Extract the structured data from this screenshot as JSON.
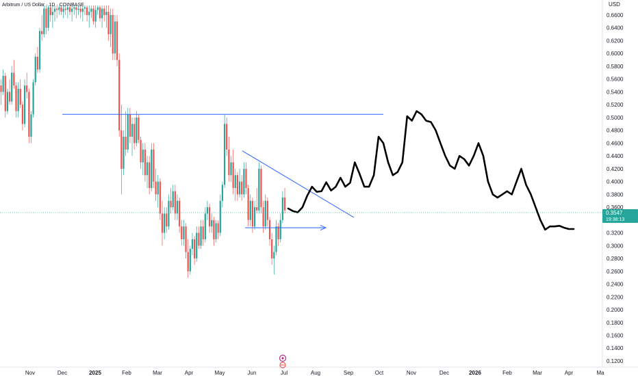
{
  "chart_data": {
    "type": "candlestick",
    "title": "Arbitrum / US Dollar · 1D · COINBASE",
    "currency_label": "USD",
    "y_ticks": [
      "0.6600",
      "0.6400",
      "0.6200",
      "0.6000",
      "0.5800",
      "0.5600",
      "0.5400",
      "0.5200",
      "0.5000",
      "0.4800",
      "0.4600",
      "0.4400",
      "0.4200",
      "0.4000",
      "0.3800",
      "0.3600",
      "0.3400",
      "0.3200",
      "0.3000",
      "0.2800",
      "0.2600",
      "0.2400",
      "0.2200",
      "0.2000",
      "0.1800",
      "0.1600",
      "0.1400",
      "0.1200"
    ],
    "x_ticks": [
      {
        "label": "Nov",
        "bold": false
      },
      {
        "label": "Dec",
        "bold": false
      },
      {
        "label": "2025",
        "bold": true
      },
      {
        "label": "Feb",
        "bold": false
      },
      {
        "label": "Mar",
        "bold": false
      },
      {
        "label": "Apr",
        "bold": false
      },
      {
        "label": "May",
        "bold": false
      },
      {
        "label": "Jun",
        "bold": false
      },
      {
        "label": "Jul",
        "bold": false
      },
      {
        "label": "Aug",
        "bold": false
      },
      {
        "label": "Sep",
        "bold": false
      },
      {
        "label": "Oct",
        "bold": false
      },
      {
        "label": "Nov",
        "bold": false
      },
      {
        "label": "Dec",
        "bold": false
      },
      {
        "label": "2026",
        "bold": true
      },
      {
        "label": "Feb",
        "bold": false
      },
      {
        "label": "Mar",
        "bold": false
      },
      {
        "label": "Apr",
        "bold": false
      },
      {
        "label": "Ma",
        "bold": false
      }
    ],
    "ylim": [
      0.11,
      0.675
    ],
    "current_price": "0.3547",
    "countdown": "19:38:13",
    "grid": false,
    "colors": {
      "up": "#26a69a",
      "down": "#ef5350",
      "drawing": "#2962ff",
      "prediction": "#000000",
      "price_tag": "#26a69a"
    },
    "resistance_level": 0.505,
    "projection_path": [
      0.358,
      0.354,
      0.352,
      0.36,
      0.378,
      0.392,
      0.384,
      0.385,
      0.399,
      0.386,
      0.392,
      0.406,
      0.392,
      0.398,
      0.43,
      0.412,
      0.392,
      0.392,
      0.41,
      0.47,
      0.46,
      0.43,
      0.41,
      0.415,
      0.43,
      0.502,
      0.495,
      0.51,
      0.505,
      0.495,
      0.493,
      0.48,
      0.46,
      0.44,
      0.425,
      0.42,
      0.44,
      0.435,
      0.425,
      0.44,
      0.46,
      0.44,
      0.4,
      0.38,
      0.375,
      0.38,
      0.385,
      0.38,
      0.4,
      0.42,
      0.395,
      0.38,
      0.36,
      0.34,
      0.325,
      0.33,
      0.33,
      0.331,
      0.328,
      0.326,
      0.326
    ],
    "candles": [
      [
        0.55,
        0.56,
        0.52,
        0.54
      ],
      [
        0.54,
        0.575,
        0.535,
        0.565
      ],
      [
        0.565,
        0.57,
        0.5,
        0.51
      ],
      [
        0.51,
        0.545,
        0.505,
        0.54
      ],
      [
        0.54,
        0.56,
        0.52,
        0.525
      ],
      [
        0.525,
        0.58,
        0.52,
        0.57
      ],
      [
        0.57,
        0.59,
        0.545,
        0.55
      ],
      [
        0.55,
        0.555,
        0.5,
        0.51
      ],
      [
        0.51,
        0.555,
        0.5,
        0.545
      ],
      [
        0.545,
        0.56,
        0.515,
        0.52
      ],
      [
        0.52,
        0.525,
        0.48,
        0.49
      ],
      [
        0.49,
        0.56,
        0.485,
        0.55
      ],
      [
        0.55,
        0.57,
        0.53,
        0.54
      ],
      [
        0.54,
        0.545,
        0.46,
        0.47
      ],
      [
        0.47,
        0.51,
        0.46,
        0.505
      ],
      [
        0.505,
        0.56,
        0.5,
        0.555
      ],
      [
        0.555,
        0.6,
        0.55,
        0.595
      ],
      [
        0.595,
        0.61,
        0.57,
        0.575
      ],
      [
        0.575,
        0.64,
        0.57,
        0.635
      ],
      [
        0.635,
        0.66,
        0.62,
        0.63
      ],
      [
        0.63,
        0.675,
        0.625,
        0.67
      ],
      [
        0.67,
        0.675,
        0.63,
        0.64
      ],
      [
        0.64,
        0.675,
        0.635,
        0.672
      ],
      [
        0.672,
        0.675,
        0.65,
        0.66
      ],
      [
        0.66,
        0.675,
        0.64,
        0.665
      ],
      [
        0.665,
        0.675,
        0.65,
        0.67
      ],
      [
        0.67,
        0.675,
        0.655,
        0.668
      ],
      [
        0.668,
        0.675,
        0.66,
        0.672
      ],
      [
        0.672,
        0.675,
        0.66,
        0.665
      ],
      [
        0.665,
        0.675,
        0.655,
        0.67
      ],
      [
        0.67,
        0.675,
        0.66,
        0.668
      ],
      [
        0.668,
        0.675,
        0.655,
        0.672
      ],
      [
        0.672,
        0.675,
        0.66,
        0.665
      ],
      [
        0.665,
        0.675,
        0.65,
        0.67
      ],
      [
        0.67,
        0.675,
        0.66,
        0.672
      ],
      [
        0.672,
        0.675,
        0.655,
        0.668
      ],
      [
        0.668,
        0.675,
        0.66,
        0.67
      ],
      [
        0.67,
        0.675,
        0.655,
        0.665
      ],
      [
        0.665,
        0.675,
        0.65,
        0.67
      ],
      [
        0.67,
        0.675,
        0.66,
        0.672
      ],
      [
        0.672,
        0.675,
        0.65,
        0.66
      ],
      [
        0.66,
        0.675,
        0.64,
        0.665
      ],
      [
        0.665,
        0.675,
        0.655,
        0.67
      ],
      [
        0.67,
        0.675,
        0.645,
        0.65
      ],
      [
        0.65,
        0.675,
        0.64,
        0.668
      ],
      [
        0.668,
        0.675,
        0.66,
        0.672
      ],
      [
        0.672,
        0.675,
        0.65,
        0.655
      ],
      [
        0.655,
        0.675,
        0.64,
        0.67
      ],
      [
        0.67,
        0.675,
        0.65,
        0.66
      ],
      [
        0.66,
        0.675,
        0.64,
        0.665
      ],
      [
        0.665,
        0.675,
        0.62,
        0.63
      ],
      [
        0.63,
        0.67,
        0.61,
        0.66
      ],
      [
        0.66,
        0.67,
        0.59,
        0.6
      ],
      [
        0.6,
        0.66,
        0.59,
        0.65
      ],
      [
        0.65,
        0.66,
        0.58,
        0.59
      ],
      [
        0.59,
        0.6,
        0.47,
        0.48
      ],
      [
        0.48,
        0.52,
        0.38,
        0.42
      ],
      [
        0.42,
        0.48,
        0.41,
        0.47
      ],
      [
        0.47,
        0.51,
        0.44,
        0.45
      ],
      [
        0.45,
        0.515,
        0.445,
        0.505
      ],
      [
        0.505,
        0.515,
        0.46,
        0.47
      ],
      [
        0.47,
        0.5,
        0.44,
        0.49
      ],
      [
        0.49,
        0.5,
        0.45,
        0.46
      ],
      [
        0.46,
        0.51,
        0.455,
        0.5
      ],
      [
        0.5,
        0.505,
        0.46,
        0.465
      ],
      [
        0.465,
        0.47,
        0.42,
        0.43
      ],
      [
        0.43,
        0.46,
        0.41,
        0.45
      ],
      [
        0.45,
        0.46,
        0.4,
        0.41
      ],
      [
        0.41,
        0.44,
        0.39,
        0.43
      ],
      [
        0.43,
        0.44,
        0.38,
        0.39
      ],
      [
        0.39,
        0.46,
        0.385,
        0.45
      ],
      [
        0.45,
        0.46,
        0.39,
        0.4
      ],
      [
        0.4,
        0.42,
        0.37,
        0.38
      ],
      [
        0.38,
        0.41,
        0.36,
        0.4
      ],
      [
        0.4,
        0.405,
        0.34,
        0.35
      ],
      [
        0.35,
        0.37,
        0.3,
        0.32
      ],
      [
        0.32,
        0.36,
        0.31,
        0.35
      ],
      [
        0.35,
        0.36,
        0.32,
        0.33
      ],
      [
        0.33,
        0.38,
        0.325,
        0.37
      ],
      [
        0.37,
        0.39,
        0.35,
        0.36
      ],
      [
        0.36,
        0.395,
        0.355,
        0.385
      ],
      [
        0.385,
        0.395,
        0.34,
        0.35
      ],
      [
        0.35,
        0.38,
        0.34,
        0.37
      ],
      [
        0.37,
        0.375,
        0.32,
        0.33
      ],
      [
        0.33,
        0.34,
        0.3,
        0.31
      ],
      [
        0.31,
        0.34,
        0.3,
        0.33
      ],
      [
        0.33,
        0.335,
        0.28,
        0.29
      ],
      [
        0.29,
        0.31,
        0.25,
        0.26
      ],
      [
        0.26,
        0.3,
        0.255,
        0.295
      ],
      [
        0.295,
        0.32,
        0.285,
        0.31
      ],
      [
        0.31,
        0.315,
        0.27,
        0.28
      ],
      [
        0.28,
        0.33,
        0.275,
        0.32
      ],
      [
        0.32,
        0.33,
        0.295,
        0.3
      ],
      [
        0.3,
        0.34,
        0.295,
        0.33
      ],
      [
        0.33,
        0.34,
        0.3,
        0.31
      ],
      [
        0.31,
        0.36,
        0.305,
        0.35
      ],
      [
        0.35,
        0.37,
        0.34,
        0.36
      ],
      [
        0.36,
        0.365,
        0.32,
        0.33
      ],
      [
        0.33,
        0.35,
        0.32,
        0.34
      ],
      [
        0.34,
        0.345,
        0.3,
        0.31
      ],
      [
        0.31,
        0.34,
        0.305,
        0.335
      ],
      [
        0.335,
        0.34,
        0.31,
        0.32
      ],
      [
        0.32,
        0.38,
        0.315,
        0.37
      ],
      [
        0.37,
        0.4,
        0.36,
        0.395
      ],
      [
        0.395,
        0.505,
        0.39,
        0.49
      ],
      [
        0.49,
        0.5,
        0.44,
        0.45
      ],
      [
        0.45,
        0.47,
        0.4,
        0.41
      ],
      [
        0.41,
        0.44,
        0.4,
        0.43
      ],
      [
        0.43,
        0.45,
        0.38,
        0.39
      ],
      [
        0.39,
        0.42,
        0.37,
        0.41
      ],
      [
        0.41,
        0.415,
        0.37,
        0.38
      ],
      [
        0.38,
        0.42,
        0.375,
        0.4
      ],
      [
        0.4,
        0.41,
        0.37,
        0.38
      ],
      [
        0.38,
        0.43,
        0.375,
        0.42
      ],
      [
        0.42,
        0.43,
        0.38,
        0.39
      ],
      [
        0.39,
        0.395,
        0.33,
        0.34
      ],
      [
        0.34,
        0.38,
        0.33,
        0.37
      ],
      [
        0.37,
        0.375,
        0.32,
        0.33
      ],
      [
        0.33,
        0.37,
        0.325,
        0.36
      ],
      [
        0.36,
        0.39,
        0.35,
        0.355
      ],
      [
        0.355,
        0.43,
        0.35,
        0.42
      ],
      [
        0.42,
        0.425,
        0.35,
        0.36
      ],
      [
        0.36,
        0.37,
        0.32,
        0.33
      ],
      [
        0.33,
        0.38,
        0.325,
        0.37
      ],
      [
        0.37,
        0.375,
        0.33,
        0.34
      ],
      [
        0.34,
        0.345,
        0.3,
        0.31
      ],
      [
        0.31,
        0.32,
        0.27,
        0.28
      ],
      [
        0.28,
        0.3,
        0.255,
        0.29
      ],
      [
        0.29,
        0.34,
        0.285,
        0.33
      ],
      [
        0.33,
        0.335,
        0.3,
        0.31
      ],
      [
        0.31,
        0.35,
        0.305,
        0.34
      ],
      [
        0.34,
        0.385,
        0.335,
        0.375
      ],
      [
        0.375,
        0.39,
        0.35,
        0.355
      ]
    ]
  }
}
